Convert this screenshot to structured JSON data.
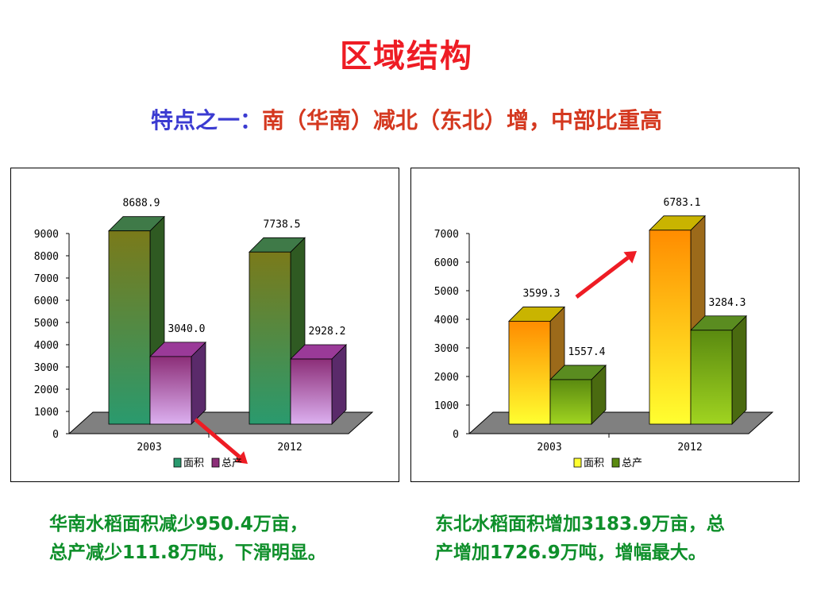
{
  "title": "区域结构",
  "subtitle": {
    "lead": "特点之一：",
    "rest": "南（华南）减北（东北）增，中部比重高"
  },
  "chart_data": [
    {
      "type": "bar",
      "categories": [
        "2003",
        "2012"
      ],
      "series": [
        {
          "name": "面积",
          "values": [
            8688.9,
            7738.5
          ],
          "color": "#4a7a3a"
        },
        {
          "name": "总产",
          "values": [
            3040.0,
            2928.2
          ],
          "color": "#b058b8"
        }
      ],
      "value_labels": [
        [
          "8688.9",
          "7738.5"
        ],
        [
          "3040.0",
          "2928.2"
        ]
      ],
      "ylim": [
        0,
        9000
      ],
      "yticks": [
        "0",
        "1000",
        "2000",
        "3000",
        "4000",
        "5000",
        "6000",
        "7000",
        "8000",
        "9000"
      ],
      "legend_position": "bottom",
      "arrow": "down",
      "grid": false,
      "caption": [
        "华南水稻面积减少950.4万亩，",
        "总产减少111.8万吨，下滑明显。"
      ]
    },
    {
      "type": "bar",
      "categories": [
        "2003",
        "2012"
      ],
      "series": [
        {
          "name": "面积",
          "values": [
            3599.3,
            6783.1
          ],
          "color": "#ff9f00"
        },
        {
          "name": "总产",
          "values": [
            1557.4,
            3284.3
          ],
          "color": "#8cc21f"
        }
      ],
      "value_labels": [
        [
          "3599.3",
          "6783.1"
        ],
        [
          "1557.4",
          "3284.3"
        ]
      ],
      "ylim": [
        0,
        7000
      ],
      "yticks": [
        "0",
        "1000",
        "2000",
        "3000",
        "4000",
        "5000",
        "6000",
        "7000"
      ],
      "legend_position": "bottom",
      "arrow": "up",
      "grid": false,
      "caption": [
        "东北水稻面积增加3183.9万亩，总",
        "产增加1726.9万吨，增幅最大。"
      ]
    }
  ]
}
